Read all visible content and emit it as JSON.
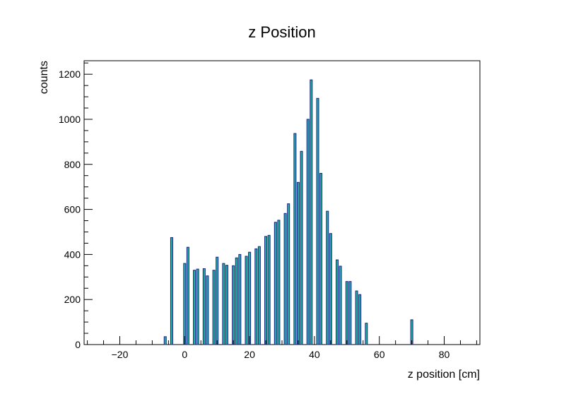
{
  "chart_data": {
    "type": "bar",
    "title": "z Position",
    "xlabel": "z position [cm]",
    "ylabel": "counts",
    "xlim": [
      -31,
      91
    ],
    "ylim": [
      0,
      1260
    ],
    "x_ticks": [
      -20,
      0,
      20,
      40,
      60,
      80
    ],
    "x_tick_labels": [
      "−20",
      "0",
      "20",
      "40",
      "60",
      "80"
    ],
    "y_ticks": [
      0,
      200,
      400,
      600,
      800,
      1000,
      1200
    ],
    "y_tick_labels": [
      "0",
      "200",
      "400",
      "600",
      "800",
      "1000",
      "1200"
    ],
    "grid": false,
    "colors": {
      "bar_fill": "#20b2aa",
      "bar_edge": "#1a237e",
      "axis": "#000000"
    },
    "x": [
      -6,
      -4,
      0,
      1,
      3,
      4,
      6,
      7,
      9,
      10,
      12,
      13,
      15,
      16,
      17,
      19,
      20,
      22,
      23,
      25,
      26,
      28,
      29,
      31,
      32,
      34,
      35,
      36,
      38,
      39,
      41,
      42,
      44,
      45,
      47,
      48,
      50,
      51,
      53,
      54,
      56,
      70
    ],
    "values": [
      35,
      475,
      360,
      432,
      330,
      335,
      337,
      305,
      330,
      388,
      360,
      352,
      350,
      385,
      400,
      392,
      410,
      425,
      435,
      480,
      485,
      543,
      552,
      582,
      625,
      937,
      720,
      858,
      1000,
      1175,
      1093,
      760,
      592,
      493,
      376,
      348,
      280,
      280,
      238,
      222,
      95,
      110
    ]
  }
}
